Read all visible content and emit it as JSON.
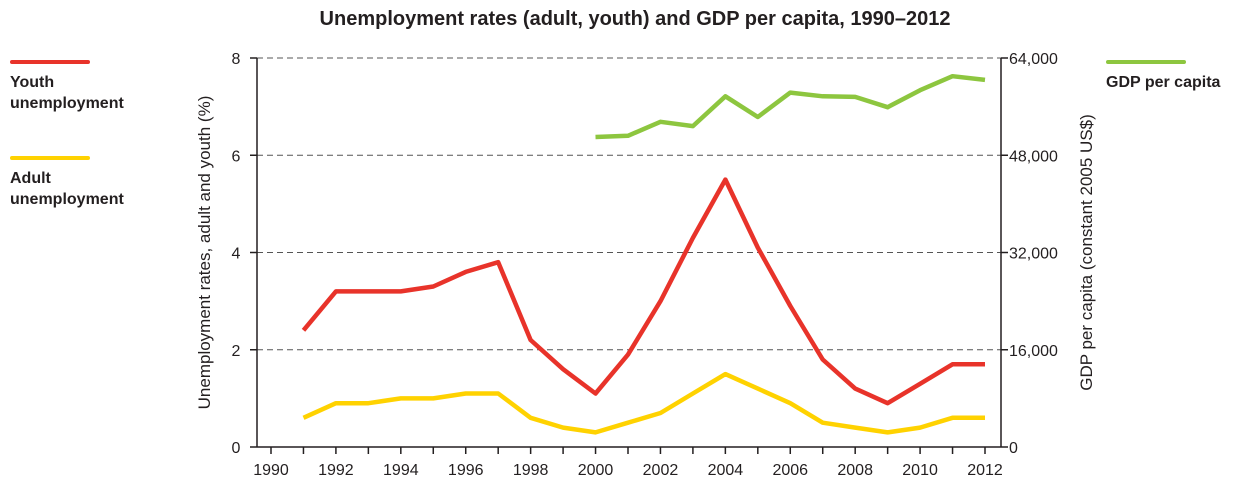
{
  "chart_data": {
    "type": "line",
    "title": "Unemployment rates (adult, youth) and GDP per capita, 1990–2012",
    "x": [
      1990,
      1991,
      1992,
      1993,
      1994,
      1995,
      1996,
      1997,
      1998,
      1999,
      2000,
      2001,
      2002,
      2003,
      2004,
      2005,
      2006,
      2007,
      2008,
      2009,
      2010,
      2011,
      2012
    ],
    "xticks": [
      "1990",
      "1992",
      "1994",
      "1996",
      "1998",
      "2000",
      "2002",
      "2004",
      "2006",
      "2008",
      "2010",
      "2012"
    ],
    "ylabel_left": "Unemployment rates, adult and youth (%)",
    "ylim_left": [
      0,
      8
    ],
    "yticks_left": [
      "0",
      "2",
      "4",
      "6",
      "8"
    ],
    "ylabel_right": "GDP per capita (constant 2005 US$)",
    "ylim_right": [
      0,
      64000
    ],
    "yticks_right": [
      "0",
      "16,000",
      "32,000",
      "48,000",
      "64,000"
    ],
    "grid": "horizontal dashed",
    "series": [
      {
        "name": "Youth unemployment",
        "axis": "left",
        "color": "#e8332a",
        "values": [
          null,
          2.4,
          3.2,
          3.2,
          3.2,
          3.3,
          3.6,
          3.8,
          2.2,
          1.6,
          1.1,
          1.9,
          3.0,
          4.3,
          5.5,
          4.1,
          2.9,
          1.8,
          1.2,
          0.9,
          1.3,
          1.7,
          1.7
        ]
      },
      {
        "name": "Adult unemployment",
        "axis": "left",
        "color": "#ffd200",
        "values": [
          null,
          0.6,
          0.9,
          0.9,
          1.0,
          1.0,
          1.1,
          1.1,
          0.6,
          0.4,
          0.3,
          0.5,
          0.7,
          1.1,
          1.5,
          1.2,
          0.9,
          0.5,
          0.4,
          0.3,
          0.4,
          0.6,
          0.6
        ]
      },
      {
        "name": "GDP per capita",
        "axis": "right",
        "color": "#8dc63f",
        "values": [
          null,
          null,
          null,
          null,
          null,
          null,
          null,
          null,
          null,
          null,
          51000,
          51200,
          53500,
          52800,
          57700,
          54300,
          58300,
          57700,
          57600,
          55900,
          58700,
          61000,
          60400
        ]
      }
    ]
  }
}
